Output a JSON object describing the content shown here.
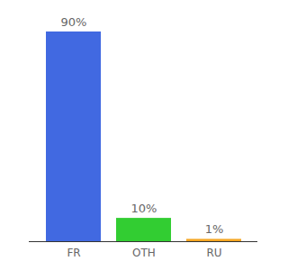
{
  "chart_data": {
    "type": "bar",
    "categories": [
      "FR",
      "OTH",
      "RU"
    ],
    "values": [
      90,
      10,
      1
    ],
    "value_labels": [
      "90%",
      "10%",
      "1%"
    ],
    "colors": [
      "#4169e1",
      "#32cd32",
      "#f5a623"
    ],
    "ylim": [
      0,
      90
    ],
    "grid": false,
    "data_labels": true,
    "tick_labels": "x"
  }
}
